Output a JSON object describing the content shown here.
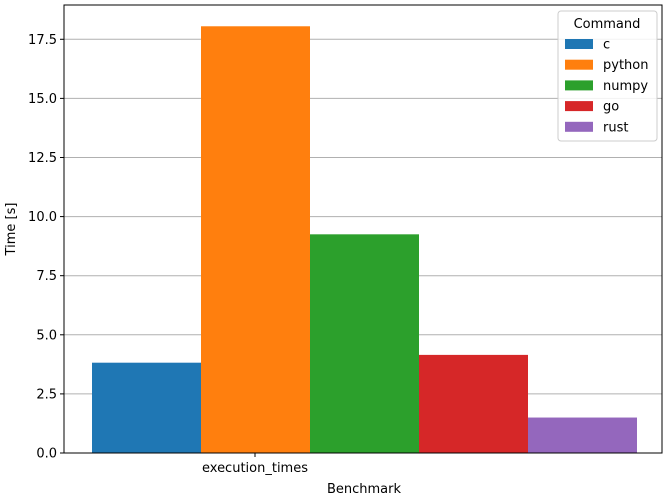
{
  "chart_data": {
    "type": "bar",
    "categories": [
      "execution_times"
    ],
    "series": [
      {
        "name": "c",
        "values": [
          3.82
        ],
        "color": "#1f77b4"
      },
      {
        "name": "python",
        "values": [
          18.05
        ],
        "color": "#ff7f0e"
      },
      {
        "name": "numpy",
        "values": [
          9.25
        ],
        "color": "#2ca02c"
      },
      {
        "name": "go",
        "values": [
          4.15
        ],
        "color": "#d62728"
      },
      {
        "name": "rust",
        "values": [
          1.5
        ],
        "color": "#9467bd"
      }
    ],
    "xlabel": "Benchmark",
    "ylabel": "Time [s]",
    "ylim": [
      0,
      18.95
    ],
    "yticks": [
      "0.0",
      "2.5",
      "5.0",
      "7.5",
      "10.0",
      "12.5",
      "15.0",
      "17.5"
    ],
    "grid": "y",
    "legend": {
      "title": "Command",
      "position": "top-right"
    }
  }
}
